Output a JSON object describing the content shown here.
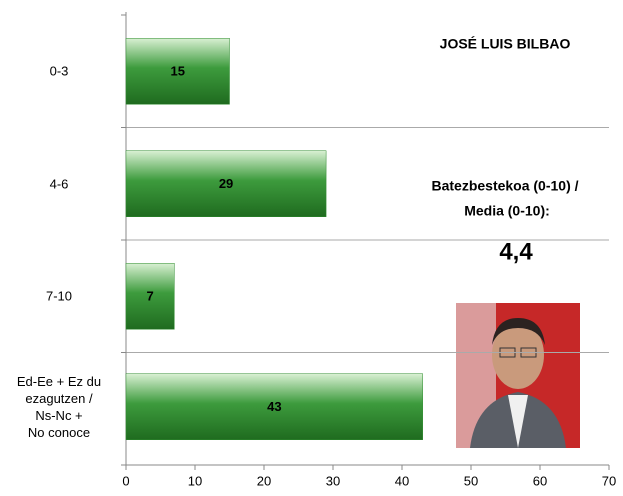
{
  "chart_data": {
    "type": "bar",
    "orientation": "horizontal",
    "categories": [
      "0-3",
      "4-6",
      "7-10",
      "Ed-Ee + Ez du\nezagutzen /\nNs-Nc +\nNo conoce"
    ],
    "values": [
      15,
      29,
      7,
      43
    ],
    "color": "#2e8b2e",
    "xlim": [
      0,
      70
    ],
    "xticks": [
      0,
      10,
      20,
      30,
      40,
      50,
      60,
      70
    ],
    "annotations": [
      "JOSÉ LUIS BILBAO",
      "Batezbestekoa (0-10) /",
      "Media (0-10):",
      "4,4"
    ]
  }
}
